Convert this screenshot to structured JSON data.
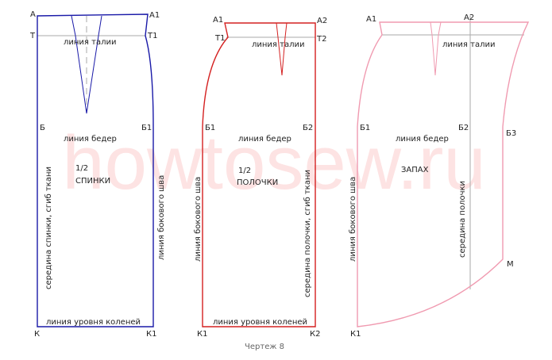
{
  "watermark": "howtosew.ru",
  "caption": "Чертеж 8",
  "panels": [
    {
      "points": [
        "А",
        "А1",
        "Т",
        "Т1",
        "Б",
        "Б1",
        "К",
        "К1"
      ],
      "texts": [
        "линия талии",
        "линия бедер",
        "1/2",
        "СПИНКИ",
        "середина спинки, сгиб ткани",
        "линия бокового шва",
        "линия уровня коленей"
      ]
    },
    {
      "points": [
        "А1",
        "А2",
        "Т1",
        "Т2",
        "Б1",
        "Б2",
        "К1",
        "К2"
      ],
      "texts": [
        "линия талии",
        "линия бедер",
        "1/2",
        "ПОЛОЧКИ",
        "линия бокового шва",
        "середина полочки, сгиб ткани",
        "линия уровня коленей"
      ]
    },
    {
      "points": [
        "А1",
        "А2",
        "Б1",
        "Б2",
        "Б3",
        "М",
        "К1"
      ],
      "texts": [
        "линия талии",
        "линия бедер",
        "ЗАПАХ",
        "линия бокового шва",
        "середина полочки"
      ]
    }
  ]
}
